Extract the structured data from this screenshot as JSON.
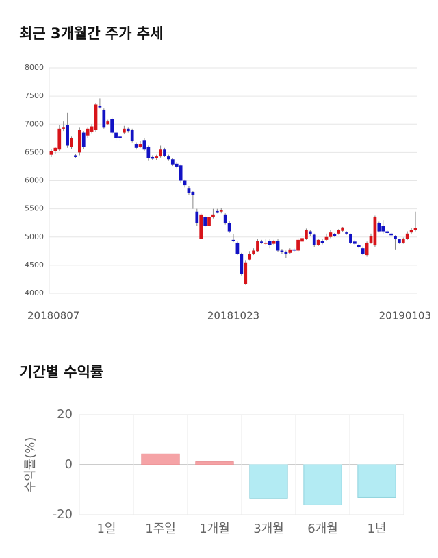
{
  "chart_data": [
    {
      "type": "candlestick",
      "title": "최근 3개월간 주가 추세",
      "categories": [
        "20180807",
        null,
        null,
        null,
        null,
        null,
        null,
        null,
        null,
        null,
        null,
        null,
        null,
        null,
        null,
        null,
        null,
        null,
        null,
        null,
        null,
        null,
        null,
        null,
        null,
        null,
        null,
        null,
        null,
        null,
        null,
        null,
        null,
        null,
        null,
        null,
        null,
        null,
        null,
        null,
        null,
        null,
        null,
        null,
        null,
        "20181023",
        null,
        null,
        null,
        null,
        null,
        null,
        null,
        null,
        null,
        null,
        null,
        null,
        null,
        null,
        null,
        null,
        null,
        null,
        null,
        null,
        null,
        null,
        null,
        null,
        null,
        null,
        null,
        null,
        null,
        null,
        null,
        null,
        null,
        null,
        null,
        null,
        null,
        null,
        null,
        null,
        null,
        null,
        null,
        null,
        "20190103"
      ],
      "open": [
        6460,
        6520,
        6550,
        6920,
        6980,
        6600,
        6450,
        6500,
        6850,
        6800,
        6870,
        6900,
        7330,
        7250,
        7000,
        7100,
        6850,
        6780,
        6850,
        6920,
        6900,
        6650,
        6600,
        6720,
        6600,
        6420,
        6400,
        6430,
        6550,
        6430,
        6380,
        6300,
        6270,
        6000,
        5870,
        5800,
        5450,
        4970,
        5350,
        5200,
        5350,
        5460,
        5450,
        5400,
        5250,
        4950,
        4900,
        4700,
        4170,
        4600,
        4700,
        4750,
        4920,
        4880,
        4930,
        4880,
        4930,
        4760,
        4730,
        4720,
        4780,
        4760,
        4920,
        4970,
        5100,
        5040,
        4860,
        4930,
        4950,
        5000,
        5050,
        5060,
        5110,
        5080,
        5050,
        4920,
        4860,
        4800,
        4680,
        4900,
        4850,
        5250,
        5200,
        5100,
        5060,
        5010,
        4960,
        4900,
        4970,
        5080,
        5120
      ],
      "high": [
        6560,
        6600,
        6980,
        7050,
        7200,
        6780,
        6480,
        6950,
        6880,
        6950,
        7000,
        7380,
        7460,
        7280,
        7080,
        7120,
        6900,
        6800,
        6970,
        6950,
        6920,
        6680,
        6700,
        6760,
        6620,
        6450,
        6460,
        6620,
        6580,
        6460,
        6400,
        6330,
        6290,
        6020,
        5900,
        5820,
        5500,
        5420,
        5380,
        5380,
        5500,
        5500,
        5520,
        5420,
        5280,
        5050,
        4920,
        4720,
        4580,
        4750,
        4800,
        4960,
        4950,
        4960,
        4970,
        4950,
        4960,
        4790,
        4760,
        4800,
        4800,
        4980,
        5250,
        5150,
        5120,
        5060,
        4970,
        4960,
        5060,
        5120,
        5070,
        5140,
        5180,
        5100,
        5060,
        4950,
        4880,
        4830,
        4920,
        5060,
        5380,
        5270,
        5300,
        5120,
        5080,
        5030,
        4970,
        4990,
        5100,
        5160,
        5450
      ],
      "low": [
        6420,
        6480,
        6520,
        6880,
        6580,
        6560,
        6400,
        6450,
        6560,
        6760,
        6840,
        6870,
        7280,
        6920,
        6980,
        6820,
        6720,
        6700,
        6820,
        6850,
        6680,
        6550,
        6580,
        6520,
        6350,
        6360,
        6370,
        6410,
        6420,
        6350,
        6260,
        6220,
        5960,
        5880,
        5750,
        5500,
        5200,
        4960,
        5180,
        5180,
        5330,
        5420,
        5420,
        5220,
        5070,
        4910,
        4680,
        4320,
        4150,
        4580,
        4680,
        4730,
        4880,
        4860,
        4800,
        4860,
        4730,
        4700,
        4620,
        4700,
        4740,
        4740,
        4880,
        4950,
        5020,
        4820,
        4840,
        4870,
        4930,
        4980,
        5000,
        5040,
        5090,
        5040,
        4880,
        4850,
        4800,
        4680,
        4650,
        4880,
        4820,
        5080,
        5060,
        5050,
        5010,
        4780,
        4880,
        4880,
        4950,
        5060,
        5100
      ],
      "close": [
        6520,
        6580,
        6920,
        6950,
        6620,
        6750,
        6420,
        6900,
        6600,
        6920,
        6960,
        7350,
        7300,
        6950,
        7050,
        6850,
        6750,
        6750,
        6920,
        6880,
        6700,
        6580,
        6650,
        6550,
        6400,
        6390,
        6430,
        6550,
        6440,
        6380,
        6290,
        6250,
        6000,
        5920,
        5780,
        5750,
        5250,
        5400,
        5200,
        5350,
        5400,
        5440,
        5480,
        5250,
        5100,
        4930,
        4700,
        4350,
        4550,
        4700,
        4760,
        4930,
        4900,
        4900,
        4860,
        4930,
        4760,
        4730,
        4700,
        4780,
        4760,
        4950,
        4980,
        5120,
        5050,
        4860,
        4950,
        4890,
        5000,
        5080,
        5020,
        5120,
        5170,
        5060,
        4900,
        4880,
        4820,
        4700,
        4900,
        5020,
        5350,
        5100,
        5100,
        5070,
        5030,
        4960,
        4900,
        4960,
        5060,
        5130,
        5160
      ],
      "up_color": "#d7141a",
      "down_color": "#1212c4",
      "ylim": [
        4000,
        8000
      ],
      "yticks": [
        4000,
        4500,
        5000,
        5500,
        6000,
        6500,
        7000,
        7500,
        8000
      ],
      "grid": true
    },
    {
      "type": "bar",
      "title": "기간별 수익률",
      "ylabel": "수익률(%)",
      "categories": [
        "1일",
        "1주일",
        "1개월",
        "3개월",
        "6개월",
        "1년"
      ],
      "values": [
        0,
        4.3,
        1.2,
        -13.5,
        -16,
        -13
      ],
      "positive_color": "#f5a3a6",
      "negative_color": "#b3ebf3",
      "ylim": [
        -20,
        20
      ],
      "yticks": [
        -20,
        0,
        20
      ],
      "grid": true
    }
  ]
}
